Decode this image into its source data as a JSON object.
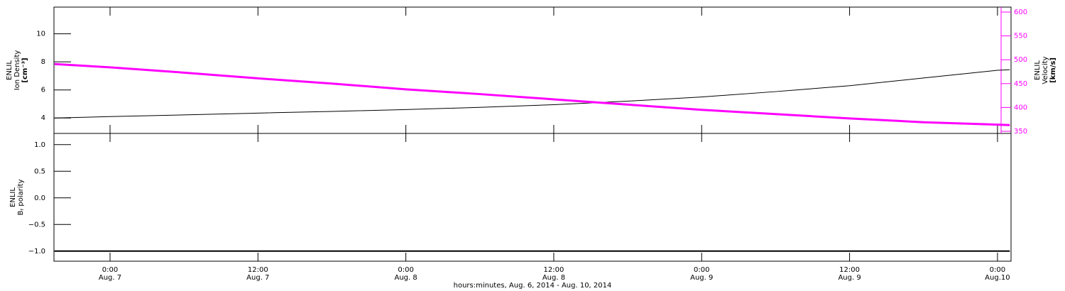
{
  "chart_data": [
    {
      "type": "line",
      "ylabel": [
        "ENLIL",
        "Ion Density",
        "[cm⁻³]"
      ],
      "y2label": [
        "ENLIL",
        "Velocity",
        "[km/s]"
      ],
      "x": [
        -4.5,
        0,
        6,
        12,
        18,
        24,
        30,
        36,
        42,
        48,
        54,
        60,
        66,
        72,
        73
      ],
      "xlim": [
        -4.55,
        73.1
      ],
      "ylim": [
        2.9,
        11.9
      ],
      "yticks": [
        4,
        6,
        8,
        10
      ],
      "y2lim": [
        345.5,
        610.4
      ],
      "y2ticks": [
        350,
        400,
        450,
        500,
        550,
        600
      ],
      "series": [
        {
          "color": "#000000",
          "values": [
            4.0,
            4.1,
            4.22,
            4.35,
            4.47,
            4.6,
            4.76,
            4.95,
            5.2,
            5.5,
            5.88,
            6.3,
            6.85,
            7.4,
            7.44
          ]
        },
        {
          "color": "#ff00ff",
          "axis": "y2",
          "values": [
            491,
            484,
            473,
            461,
            450,
            438,
            428,
            417,
            406,
            395,
            386,
            377,
            369,
            364,
            363
          ]
        }
      ]
    },
    {
      "type": "line",
      "ylabel": [
        "ENLIL",
        "B",
        "r",
        " polarity"
      ],
      "xlabel": "hours:minutes, Aug.  6, 2014 - Aug. 10, 2014",
      "x": [
        -4.5,
        0,
        12,
        24,
        36,
        48,
        60,
        72,
        73
      ],
      "xlim": [
        -4.55,
        73.1
      ],
      "xticks": [
        {
          "value": 0,
          "label": "0:00",
          "date": "Aug. 7"
        },
        {
          "value": 12,
          "label": "12:00",
          "date": "Aug. 7"
        },
        {
          "value": 24,
          "label": "0:00",
          "date": "Aug. 8"
        },
        {
          "value": 36,
          "label": "12:00",
          "date": "Aug. 8"
        },
        {
          "value": 48,
          "label": "0:00",
          "date": "Aug. 9"
        },
        {
          "value": 60,
          "label": "12:00",
          "date": "Aug. 9"
        },
        {
          "value": 72,
          "label": "0:00",
          "date": "Aug.10"
        }
      ],
      "ylim": [
        -1.19,
        1.21
      ],
      "yticks": [
        {
          "value": 1,
          "label": "1.0"
        },
        {
          "value": 0.5,
          "label": "0.5"
        },
        {
          "value": 0,
          "label": "0.0"
        },
        {
          "value": -0.5,
          "label": "−0.5"
        },
        {
          "value": -1,
          "label": "−1.0"
        }
      ],
      "series": [
        {
          "color": "#000000",
          "values": [
            -1,
            -1,
            -1,
            -1,
            -1,
            -1,
            -1,
            -1,
            -1
          ]
        }
      ]
    }
  ]
}
